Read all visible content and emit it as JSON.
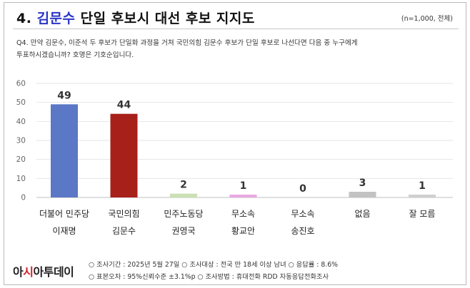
{
  "header": {
    "title_prefix": "4.",
    "title_highlight": "김문수",
    "title_rest": "단일 후보시 대선 후보 지지도",
    "sample": "(n=1,000, 전체)"
  },
  "question": {
    "line1": "Q4. 만약 김문수, 이준석 두 후보가 단일화 과정을 거쳐 국민의힘 김문수 후보가 단일 후보로 나선다면 다음 중 누구에게",
    "line2": "투표하시겠습니까?   호명은 기호순입니다."
  },
  "chart_data": {
    "type": "bar",
    "categories": [
      [
        "더불어 민주당",
        "이재명"
      ],
      [
        "국민의힘",
        "김문수"
      ],
      [
        "민주노동당",
        "권영국"
      ],
      [
        "무소속",
        "황교안"
      ],
      [
        "무소속",
        "송진호"
      ],
      [
        "없음"
      ],
      [
        "잘 모름"
      ]
    ],
    "values": [
      49,
      44,
      2,
      1,
      0,
      3,
      1
    ],
    "colors": [
      "#5b78c6",
      "#a8201a",
      "#c9e0b4",
      "#e8a8e2",
      "#cccccc",
      "#c2c2c2",
      "#cfcfcf"
    ],
    "yticks": [
      "0",
      "10",
      "20",
      "30",
      "40",
      "50",
      "60"
    ],
    "ylim": [
      0,
      60
    ],
    "grid": true,
    "title": "",
    "xlabel": "",
    "ylabel": ""
  },
  "footer": {
    "logo_black": "아시아투데이",
    "line1": "○ 조사기간 : 2025년 5월 27일 ○ 조사대상 : 전국 만 18세 이상 남녀 ○ 응답률 : 8.6%",
    "line2": "○ 표본오차 : 95%신뢰수준 ±3.1%p ○ 조사방법 : 휴대전화 RDD 자동응답전화조사"
  }
}
